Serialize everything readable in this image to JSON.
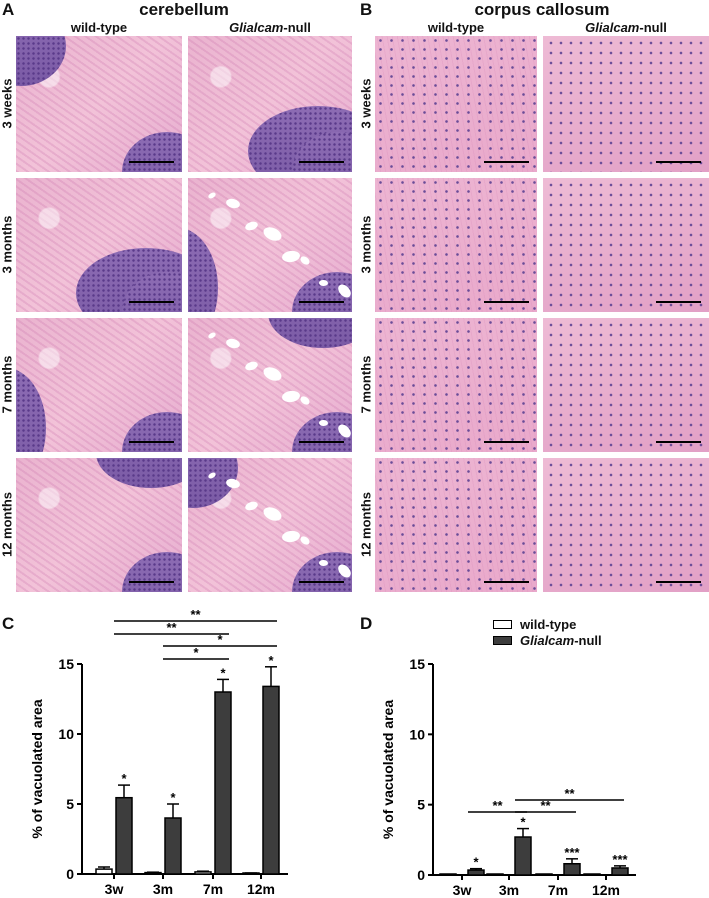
{
  "panel_a": {
    "letter": "A",
    "title": "cerebellum",
    "col_headers": [
      {
        "italic": "",
        "rest": "wild-type"
      },
      {
        "italic": "Glialcam",
        "rest": "-null"
      }
    ],
    "rows": [
      "3 weeks",
      "3 months",
      "7 months",
      "12 months"
    ]
  },
  "panel_b": {
    "letter": "B",
    "title": "corpus callosum",
    "col_headers": [
      {
        "italic": "",
        "rest": "wild-type"
      },
      {
        "italic": "Glialcam",
        "rest": "-null"
      }
    ],
    "rows": [
      "3 weeks",
      "3 months",
      "7 months",
      "12 months"
    ]
  },
  "legend": {
    "entries": [
      {
        "italic": "",
        "rest": "wild-type",
        "color": "#ffffff"
      },
      {
        "italic": "Glialcam",
        "rest": "-null",
        "color": "#3d3d3d"
      }
    ]
  },
  "chart_data": [
    {
      "panel": "C",
      "type": "bar",
      "categories": [
        "3w",
        "3m",
        "7m",
        "12m"
      ],
      "ylabel": "% of vacuolated area",
      "ylim": [
        0,
        15
      ],
      "yticks": [
        0,
        5,
        10,
        15
      ],
      "series": [
        {
          "name": "wild-type",
          "color": "#ffffff",
          "values": [
            0.35,
            0.1,
            0.15,
            0.05
          ],
          "errors": [
            0.15,
            0.03,
            0.05,
            0.02
          ],
          "marks": [
            "",
            "",
            "",
            ""
          ]
        },
        {
          "name": "Glialcam-null",
          "color": "#3d3d3d",
          "values": [
            5.45,
            4.0,
            13.0,
            13.4
          ],
          "errors": [
            0.9,
            1.0,
            0.9,
            1.4
          ],
          "marks": [
            "*",
            "*",
            "*",
            "*"
          ]
        }
      ],
      "comparisons": [
        {
          "from": "3w",
          "to": "12m",
          "label": "**"
        },
        {
          "from": "3w",
          "to": "7m",
          "label": "**"
        },
        {
          "from": "3m",
          "to": "12m",
          "label": "*"
        },
        {
          "from": "3m",
          "to": "7m",
          "label": "*"
        }
      ]
    },
    {
      "panel": "D",
      "type": "bar",
      "categories": [
        "3w",
        "3m",
        "7m",
        "12m"
      ],
      "ylabel": "% of vacuolated area",
      "ylim": [
        0,
        15
      ],
      "yticks": [
        0,
        5,
        10,
        15
      ],
      "series": [
        {
          "name": "wild-type",
          "color": "#ffffff",
          "values": [
            0.03,
            0,
            0,
            0
          ],
          "errors": [
            0.01,
            0,
            0,
            0
          ],
          "marks": [
            "",
            "",
            "",
            ""
          ]
        },
        {
          "name": "Glialcam-null",
          "color": "#3d3d3d",
          "values": [
            0.35,
            2.7,
            0.8,
            0.5
          ],
          "errors": [
            0.1,
            0.6,
            0.35,
            0.15
          ],
          "marks": [
            "*",
            "*",
            "***",
            "***"
          ]
        }
      ],
      "comparisons": [
        {
          "from": "3m",
          "to": "12m",
          "label": "**"
        },
        {
          "from": "3w",
          "to": "3m",
          "label": "**"
        },
        {
          "from": "3m",
          "to": "7m",
          "label": "**"
        }
      ]
    }
  ]
}
